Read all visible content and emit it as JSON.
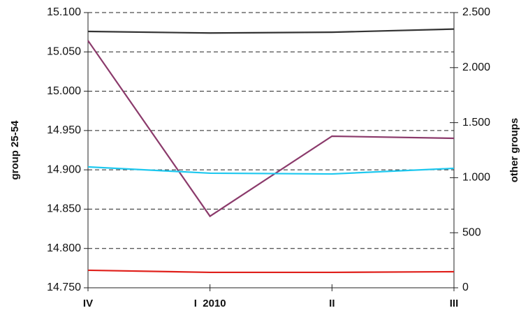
{
  "chart_data": {
    "type": "line",
    "categories": [
      "IV",
      "I  2010",
      "II",
      "III"
    ],
    "ylabel": "group 25-54",
    "y2label": "other groups",
    "ylim": [
      14.75,
      15.1
    ],
    "yticks": [
      {
        "value": 14.75,
        "label": "14.750"
      },
      {
        "value": 14.8,
        "label": "14.800"
      },
      {
        "value": 14.85,
        "label": "14.850"
      },
      {
        "value": 14.9,
        "label": "14.900"
      },
      {
        "value": 14.95,
        "label": "14.950"
      },
      {
        "value": 15.0,
        "label": "15.000"
      },
      {
        "value": 15.05,
        "label": "15.050"
      },
      {
        "value": 15.1,
        "label": "15.100"
      }
    ],
    "y2lim": [
      0,
      2500
    ],
    "y2ticks": [
      0,
      500,
      {
        "value": 1000,
        "label": "1.000"
      },
      {
        "value": 1500,
        "label": "1.500"
      },
      {
        "value": 2000,
        "label": "2.000"
      },
      {
        "value": 2500,
        "label": "2.500"
      }
    ],
    "grid": true,
    "series": [
      {
        "color": "#333333",
        "values": [
          15.076,
          15.074,
          15.075,
          15.079
        ]
      },
      {
        "color": "#8b3a6b",
        "axis": "y2",
        "values": [
          2245,
          650,
          1377,
          1358
        ]
      },
      {
        "color": "#1ec8ef",
        "axis": "y2",
        "values": [
          1098,
          1041,
          1034,
          1085
        ]
      },
      {
        "color": "#e0201b",
        "axis": "y2",
        "values": [
          159,
          140,
          140,
          146
        ]
      }
    ]
  }
}
